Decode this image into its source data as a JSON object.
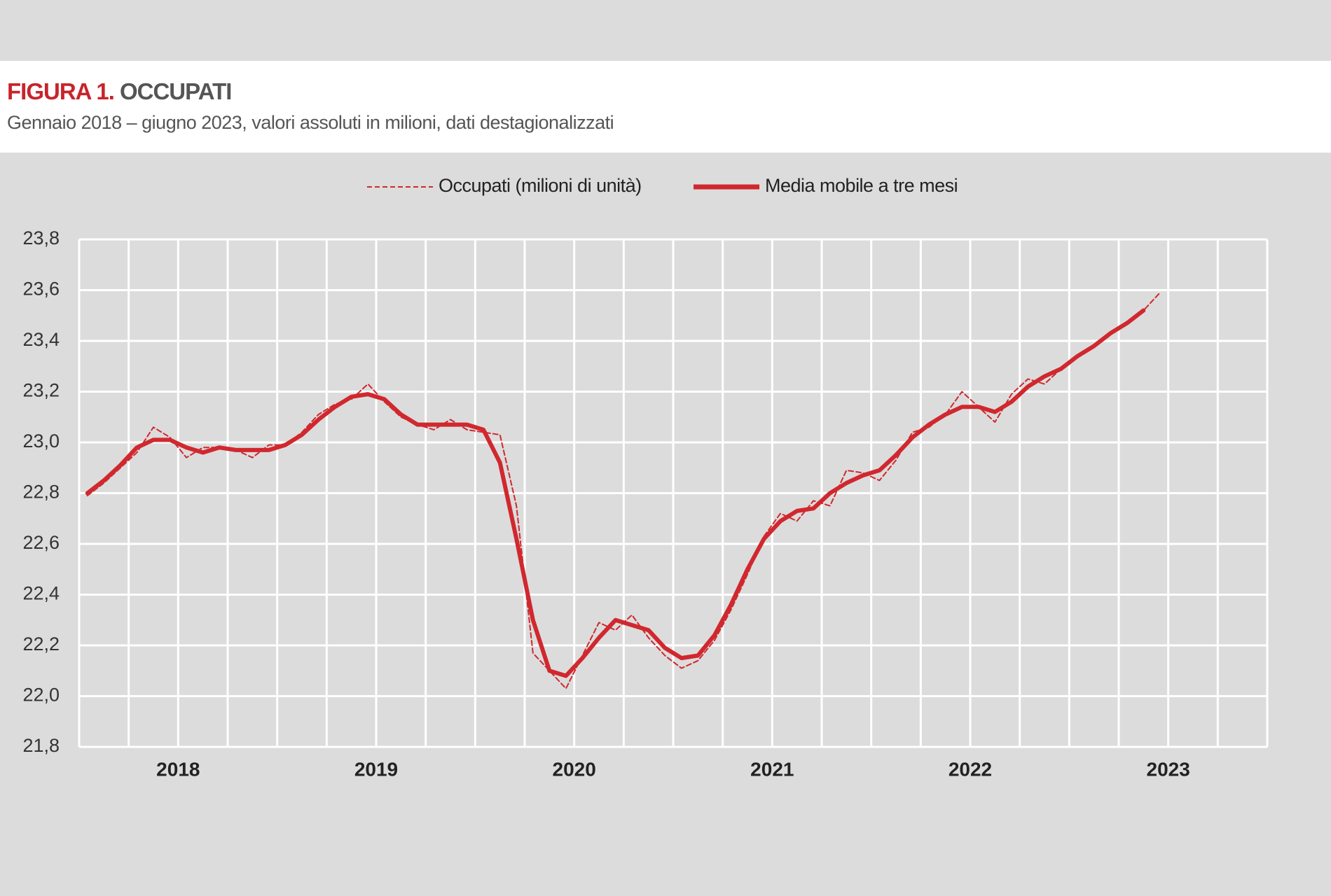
{
  "chart_data": {
    "type": "line",
    "title_prefix": "FIGURA 1.",
    "title": "OCCUPATI",
    "subtitle": "Gennaio 2018 – giugno 2023, valori assoluti in milioni, dati destagionalizzati",
    "year_labels": [
      "2018",
      "2019",
      "2020",
      "2021",
      "2022",
      "2023"
    ],
    "ylim": [
      21.8,
      23.8
    ],
    "yticks": [
      {
        "value": 21.8,
        "label": "21,8"
      },
      {
        "value": 22.0,
        "label": "22,0"
      },
      {
        "value": 22.2,
        "label": "22,2"
      },
      {
        "value": 22.4,
        "label": "22,4"
      },
      {
        "value": 22.6,
        "label": "22,6"
      },
      {
        "value": 22.8,
        "label": "22,8"
      },
      {
        "value": 23.0,
        "label": "23,0"
      },
      {
        "value": 23.2,
        "label": "23,2"
      },
      {
        "value": 23.4,
        "label": "23,4"
      },
      {
        "value": 23.6,
        "label": "23,6"
      },
      {
        "value": 23.8,
        "label": "23,8"
      }
    ],
    "grid": true,
    "legend": "top",
    "series": [
      {
        "name": "Occupati (milioni di unità)",
        "color": "#d0282e",
        "dashed": true,
        "values": [
          22.79,
          22.84,
          22.9,
          22.96,
          23.06,
          23.02,
          22.94,
          22.98,
          22.98,
          22.97,
          22.94,
          22.99,
          22.99,
          23.04,
          23.11,
          23.15,
          23.17,
          23.23,
          23.16,
          23.1,
          23.07,
          23.05,
          23.09,
          23.05,
          23.04,
          23.03,
          22.75,
          22.17,
          22.1,
          22.03,
          22.16,
          22.29,
          22.26,
          22.32,
          22.23,
          22.16,
          22.11,
          22.14,
          22.22,
          22.34,
          22.48,
          22.63,
          22.72,
          22.69,
          22.77,
          22.75,
          22.89,
          22.88,
          22.85,
          22.93,
          23.04,
          23.06,
          23.11,
          23.2,
          23.14,
          23.08,
          23.19,
          23.25,
          23.23,
          23.29,
          23.34,
          23.38,
          23.43,
          23.47,
          23.52,
          23.59
        ]
      },
      {
        "name": "Media mobile a tre mesi",
        "color": "#d0282e",
        "dashed": false,
        "values": [
          22.8,
          22.85,
          22.91,
          22.98,
          23.01,
          23.01,
          22.98,
          22.96,
          22.98,
          22.97,
          22.97,
          22.97,
          22.99,
          23.03,
          23.09,
          23.14,
          23.18,
          23.19,
          23.17,
          23.11,
          23.07,
          23.07,
          23.07,
          23.07,
          23.05,
          22.92,
          22.62,
          22.3,
          22.1,
          22.08,
          22.15,
          22.23,
          22.3,
          22.28,
          22.26,
          22.19,
          22.15,
          22.16,
          22.24,
          22.36,
          22.5,
          22.62,
          22.69,
          22.73,
          22.74,
          22.8,
          22.84,
          22.87,
          22.89,
          22.95,
          23.02,
          23.07,
          23.11,
          23.14,
          23.14,
          23.12,
          23.16,
          23.22,
          23.26,
          23.29,
          23.34,
          23.38,
          23.43,
          23.47,
          23.52,
          null
        ]
      }
    ]
  }
}
